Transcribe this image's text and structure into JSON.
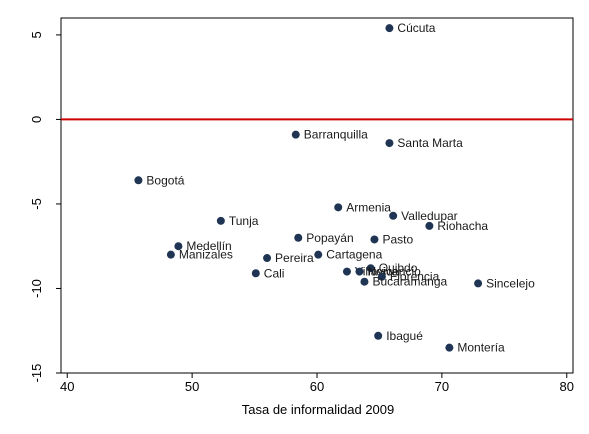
{
  "chart_data": {
    "type": "scatter",
    "title": "",
    "xlabel": "Tasa de informalidad 2009",
    "ylabel": "",
    "xlim": [
      39.5,
      80.5
    ],
    "ylim": [
      -15,
      6
    ],
    "xticks": [
      40,
      50,
      60,
      70,
      80
    ],
    "yticks": [
      5,
      0,
      -5,
      -10,
      -15
    ],
    "reference_line": {
      "y": 0,
      "color": "#cc0000"
    },
    "point_color": "#1f3553",
    "grid": false,
    "points": [
      {
        "name": "Cúcuta",
        "x": 65.8,
        "y": 5.4,
        "label_side": "right"
      },
      {
        "name": "Barranquilla",
        "x": 58.3,
        "y": -0.9,
        "label_side": "right"
      },
      {
        "name": "Santa Marta",
        "x": 65.8,
        "y": -1.4,
        "label_side": "right"
      },
      {
        "name": "Bogotá",
        "x": 45.7,
        "y": -3.6,
        "label_side": "right"
      },
      {
        "name": "Armenia",
        "x": 61.7,
        "y": -5.2,
        "label_side": "right"
      },
      {
        "name": "Valledupar",
        "x": 66.1,
        "y": -5.7,
        "label_side": "right"
      },
      {
        "name": "Tunja",
        "x": 52.3,
        "y": -6.0,
        "label_side": "right"
      },
      {
        "name": "Riohacha",
        "x": 69.0,
        "y": -6.3,
        "label_side": "right"
      },
      {
        "name": "Popayán",
        "x": 58.5,
        "y": -7.0,
        "label_side": "right"
      },
      {
        "name": "Pasto",
        "x": 64.6,
        "y": -7.1,
        "label_side": "right"
      },
      {
        "name": "Medellín",
        "x": 48.9,
        "y": -7.5,
        "label_side": "right"
      },
      {
        "name": "Manizales",
        "x": 48.3,
        "y": -8.0,
        "label_side": "right"
      },
      {
        "name": "Cartagena",
        "x": 60.1,
        "y": -8.0,
        "label_side": "right"
      },
      {
        "name": "Pereira",
        "x": 56.0,
        "y": -8.2,
        "label_side": "right"
      },
      {
        "name": "Quibdo",
        "x": 64.3,
        "y": -8.8,
        "label_side": "right"
      },
      {
        "name": "Cali",
        "x": 55.1,
        "y": -9.1,
        "label_side": "right"
      },
      {
        "name": "Villavicencio",
        "x": 62.4,
        "y": -9.0,
        "label_side": "right"
      },
      {
        "name": "Neiva",
        "x": 63.4,
        "y": -9.0,
        "label_side": "right"
      },
      {
        "name": "Florencia",
        "x": 65.2,
        "y": -9.3,
        "label_side": "right"
      },
      {
        "name": "Bucaramanga",
        "x": 63.8,
        "y": -9.6,
        "label_side": "right"
      },
      {
        "name": "Sincelejo",
        "x": 72.9,
        "y": -9.7,
        "label_side": "right"
      },
      {
        "name": "Ibagué",
        "x": 64.9,
        "y": -12.8,
        "label_side": "right"
      },
      {
        "name": "Montería",
        "x": 70.6,
        "y": -13.5,
        "label_side": "right"
      }
    ]
  }
}
